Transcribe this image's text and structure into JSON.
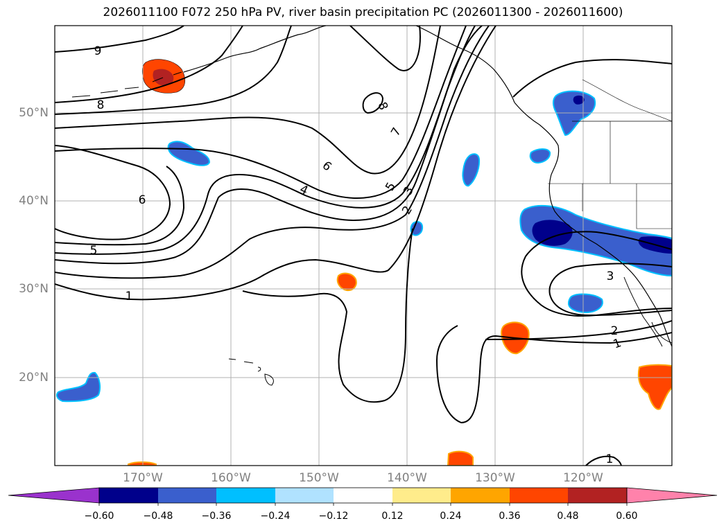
{
  "title": "2026011100 F072 250 hPa PV, river basin precipitation PC (2026011300 - 2026011600)",
  "lat_labels": [
    "50°N",
    "40°N",
    "30°N",
    "20°N"
  ],
  "lon_labels": [
    "170°W",
    "160°W",
    "150°W",
    "140°W",
    "130°W",
    "120°W"
  ],
  "contour_labels": [
    "9",
    "8",
    "8",
    "7",
    "6",
    "4",
    "6",
    "5",
    "3",
    "2",
    "5",
    "1",
    "3",
    "2",
    "1",
    "1"
  ],
  "colorbar": {
    "ticks": [
      "−0.60",
      "−0.48",
      "−0.36",
      "−0.24",
      "−0.12",
      "0.12",
      "0.24",
      "0.36",
      "0.48",
      "0.60"
    ],
    "colors": [
      "#9a32cd",
      "#00008b",
      "#3a5fcd",
      "#00bfff",
      "#b0e2ff",
      "#ffffff",
      "#ffec8b",
      "#ffa500",
      "#ff4500",
      "#b22222",
      "#ff82ab"
    ]
  }
}
